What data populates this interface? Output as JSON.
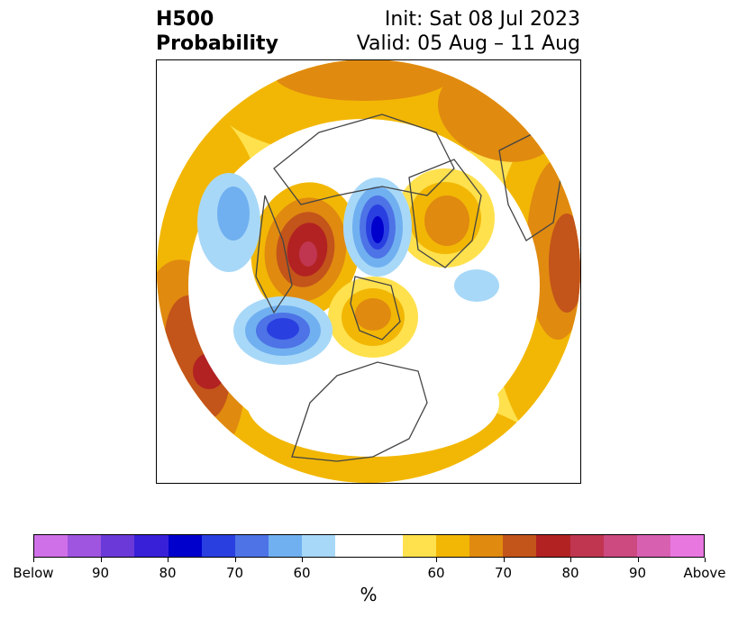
{
  "header": {
    "title_line1": "H500",
    "title_line2": "Probability",
    "init_label": "Init: Sat 08 Jul 2023",
    "valid_label": "Valid: 05 Aug – 11 Aug"
  },
  "map": {
    "projection": "north-polar-stereographic",
    "region": "Northern Hemisphere",
    "fill_colors": {
      "above_60": "#ffe14d",
      "above_70": "#f2b705",
      "above_80": "#e08a10",
      "above_90": "#c3541a",
      "above_max": "#b22222",
      "above_extreme": "#c03550",
      "below_60": "#a8d8f8",
      "below_70": "#70b0f0",
      "below_80": "#4d73e6",
      "below_90": "#2a3fe0",
      "below_max": "#0000cc"
    }
  },
  "colorbar": {
    "colors": [
      "#d070e8",
      "#9f55e0",
      "#6a39d8",
      "#3720d8",
      "#0000cc",
      "#2a3fe0",
      "#4d73e6",
      "#70b0f0",
      "#a8d8f8",
      "#ffffff",
      "#ffffff",
      "#ffe14d",
      "#f2b705",
      "#e08a10",
      "#c3541a",
      "#b22222",
      "#c03550",
      "#cc4a80",
      "#d860b0",
      "#e878e0"
    ],
    "tick_labels": [
      "Below",
      "90",
      "80",
      "70",
      "60",
      "60",
      "70",
      "80",
      "90",
      "Above"
    ],
    "unit_label": "%"
  }
}
